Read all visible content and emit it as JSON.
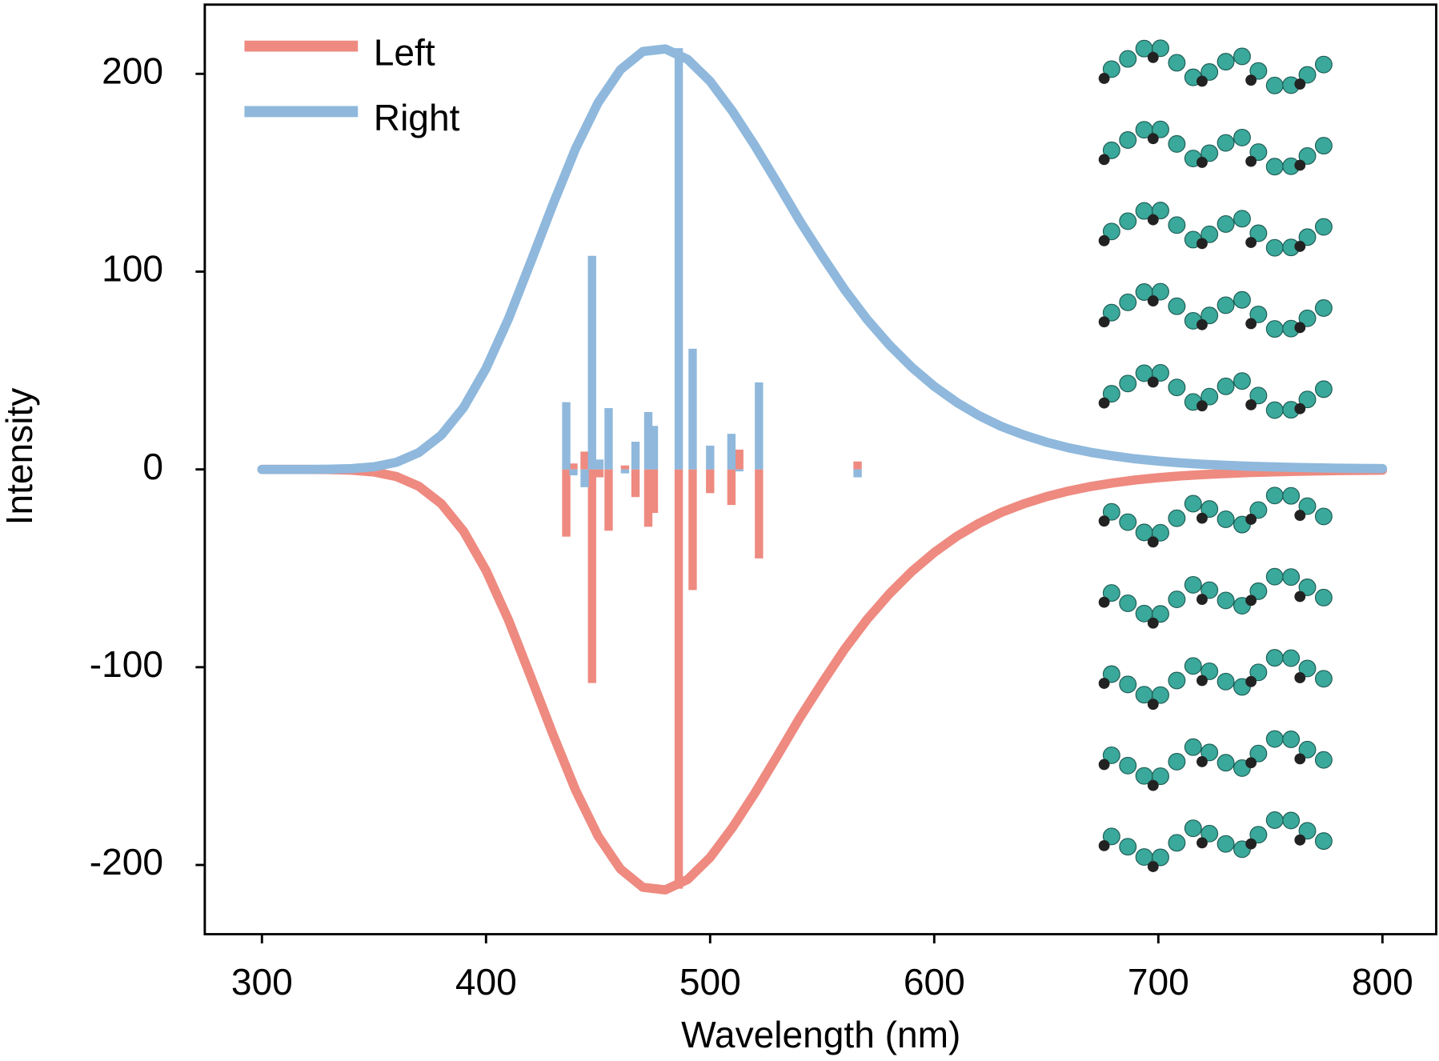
{
  "chart_data": {
    "type": "line",
    "xlabel": "Wavelength (nm)",
    "ylabel": "Intensity",
    "xlim": [
      274.5,
      824
    ],
    "ylim": [
      -235,
      235
    ],
    "xticks": [
      300,
      400,
      500,
      600,
      700,
      800
    ],
    "yticks": [
      -200,
      -100,
      0,
      100,
      200
    ],
    "legend": "upper left",
    "x": [
      300,
      310,
      320,
      330,
      340,
      350,
      360,
      370,
      380,
      390,
      400,
      410,
      420,
      430,
      440,
      450,
      460,
      470,
      480,
      490,
      500,
      510,
      520,
      530,
      540,
      550,
      560,
      570,
      580,
      590,
      600,
      610,
      620,
      630,
      640,
      650,
      660,
      670,
      680,
      690,
      700,
      710,
      720,
      730,
      740,
      750,
      760,
      770,
      780,
      790,
      800
    ],
    "stick_x": [
      435.8,
      439,
      444,
      447.3,
      450.6,
      454.7,
      462,
      466.7,
      472.4,
      474.9,
      486,
      492.2,
      500,
      509.5,
      513,
      521.8,
      565.8
    ],
    "series": [
      {
        "name": "Left",
        "color": "#ee8a80",
        "values": [
          0,
          0,
          -0.02,
          -0.1,
          -0.4,
          -1.3,
          -3.6,
          -8.5,
          -17.3,
          -31.3,
          -51.1,
          -76.1,
          -105,
          -134.4,
          -162.3,
          -185.4,
          -202.1,
          -211.3,
          -212.6,
          -207.3,
          -196.2,
          -181,
          -163.6,
          -144.8,
          -125.6,
          -107.9,
          -90.9,
          -75.9,
          -62.9,
          -51.6,
          -42,
          -33.9,
          -27.2,
          -21.7,
          -17.4,
          -13.8,
          -10.9,
          -8.6,
          -6.8,
          -5.3,
          -4.2,
          -3.3,
          -2.6,
          -2.1,
          -1.6,
          -1.3,
          -1,
          -0.8,
          -0.6,
          -0.5,
          -0.4
        ],
        "stick_values": [
          -34,
          3,
          9,
          -108,
          -4,
          -31,
          2,
          -14,
          -29,
          -22,
          -212,
          -61,
          -12,
          -18,
          10,
          -45,
          4
        ]
      },
      {
        "name": "Right",
        "color": "#8fb8dc",
        "values": [
          0,
          0,
          0.02,
          0.1,
          0.4,
          1.3,
          3.6,
          8.5,
          17.3,
          31.3,
          51.1,
          76.1,
          105,
          134.4,
          162.3,
          185.4,
          202.1,
          211.3,
          212.6,
          207.3,
          196.2,
          181,
          163.6,
          144.8,
          125.6,
          107.9,
          90.9,
          75.9,
          62.9,
          51.6,
          42,
          33.9,
          27.2,
          21.7,
          17.4,
          13.8,
          10.9,
          8.6,
          6.8,
          5.3,
          4.2,
          3.3,
          2.6,
          2.1,
          1.6,
          1.3,
          1,
          0.8,
          0.6,
          0.5,
          0.4
        ],
        "stick_values": [
          34,
          -3,
          -9,
          108,
          5,
          31,
          -2,
          14,
          29,
          22,
          213,
          61,
          12,
          18,
          -1,
          44,
          -4
        ]
      }
    ]
  }
}
